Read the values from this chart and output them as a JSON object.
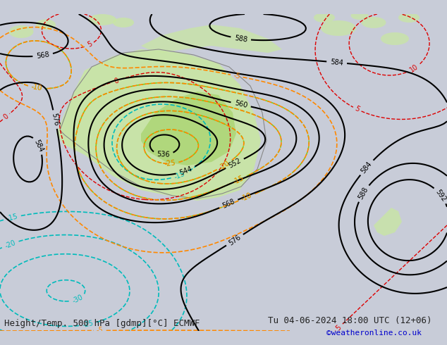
{
  "title_left": "Height/Temp. 500 hPa [gdmp][°C] ECMWF",
  "title_right": "Tu 04-06-2024 18:00 UTC (12+06)",
  "credit": "©weatheronline.co.uk",
  "bg_color": "#c8ccd8",
  "title_fontsize": 9,
  "credit_fontsize": 8,
  "credit_color": "#0000cc"
}
